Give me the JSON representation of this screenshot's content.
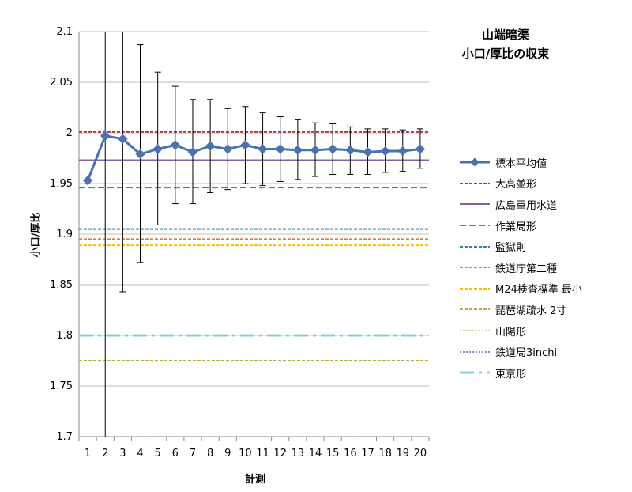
{
  "titles": {
    "line1": "山端暗渠",
    "line2": "小口/厚比の収束"
  },
  "axes": {
    "x_title": "計測",
    "y_title": "小口/厚比"
  },
  "colors": {
    "sample_mean": "#4a72b0",
    "oota_nami": "#b5332e",
    "hiroshima_water": "#8064a2",
    "sagyo_kyoku": "#1aaf54",
    "kangoku": "#31849b",
    "tetsudo_cho": "#e77a2e",
    "m24": "#f5c000",
    "biwako": "#92c047",
    "sanyo": "#c3d69b",
    "tetsudo_kyoku": "#8c87b8",
    "tokyo": "#92cddc",
    "grid": "#bfbfbf",
    "axis": "#888888",
    "error_bar": "#000000"
  },
  "chart_data": {
    "type": "line",
    "title": "山端暗渠 小口/厚比の収束",
    "xlabel": "計測",
    "ylabel": "小口/厚比",
    "x": [
      1,
      2,
      3,
      4,
      5,
      6,
      7,
      8,
      9,
      10,
      11,
      12,
      13,
      14,
      15,
      16,
      17,
      18,
      19,
      20
    ],
    "ylim": [
      1.7,
      2.1
    ],
    "yticks": [
      "1.7",
      "1.75",
      "1.8",
      "1.85",
      "1.9",
      "1.95",
      "2",
      "2.05",
      "2.1"
    ],
    "grid": true,
    "legend_position": "right",
    "series": [
      {
        "name": "標本平均値",
        "kind": "mean",
        "values": [
          1.953,
          1.997,
          1.994,
          1.979,
          1.984,
          1.988,
          1.981,
          1.987,
          1.984,
          1.988,
          1.984,
          1.984,
          1.983,
          1.983,
          1.984,
          1.983,
          1.981,
          1.982,
          1.982,
          1.984
        ],
        "error_low": [
          null,
          1.69,
          1.843,
          1.872,
          1.909,
          1.93,
          1.93,
          1.941,
          1.944,
          1.95,
          1.948,
          1.952,
          1.954,
          1.957,
          1.959,
          1.959,
          1.959,
          1.961,
          1.962,
          1.965
        ],
        "error_high": [
          null,
          2.11,
          2.11,
          2.087,
          2.06,
          2.046,
          2.033,
          2.033,
          2.024,
          2.026,
          2.02,
          2.016,
          2.013,
          2.01,
          2.009,
          2.006,
          2.004,
          2.004,
          2.003,
          2.004
        ]
      },
      {
        "name": "大高並形",
        "kind": "ref",
        "value": 2.001,
        "dash": "4,2",
        "width": 2
      },
      {
        "name": "広島軍用水道",
        "kind": "ref",
        "value": 1.973,
        "dash": "",
        "width": 2
      },
      {
        "name": "作業局形",
        "kind": "ref",
        "value": 1.946,
        "dash": "8,4",
        "width": 2
      },
      {
        "name": "監獄則",
        "kind": "ref",
        "value": 1.905,
        "dash": "4,2",
        "width": 2
      },
      {
        "name": "鉄道庁第二種",
        "kind": "ref",
        "value": 1.895,
        "dash": "4,2",
        "width": 2
      },
      {
        "name": "M24検査標準 最小",
        "kind": "ref",
        "value": 1.889,
        "dash": "4,2",
        "width": 2
      },
      {
        "name": "琵琶湖疏水 2寸",
        "kind": "ref",
        "value": 1.775,
        "dash": "4,2",
        "width": 2
      },
      {
        "name": "山陽形",
        "kind": "ref",
        "value": null,
        "dash": "2,2",
        "width": 2
      },
      {
        "name": "鉄道局3inchi",
        "kind": "ref",
        "value": null,
        "dash": "2,2",
        "width": 2
      },
      {
        "name": "東京形",
        "kind": "ref",
        "value": 1.8,
        "dash": "18,6,4,6",
        "width": 3
      }
    ]
  }
}
